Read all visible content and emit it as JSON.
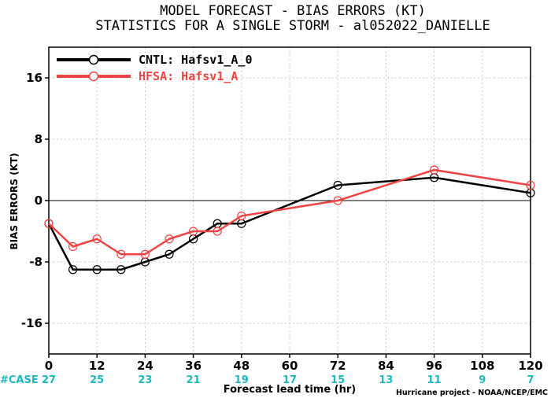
{
  "chart_data": {
    "type": "line",
    "title": "MODEL FORECAST - BIAS ERRORS (KT)",
    "subtitle": "STATISTICS FOR A SINGLE STORM - al052022_DANIELLE",
    "xlabel": "Forecast lead time (hr)",
    "ylabel": "BIAS ERRORS (KT)",
    "xlim": [
      0,
      120
    ],
    "ylim": [
      -20,
      20
    ],
    "x_ticks": [
      "0",
      "12",
      "24",
      "36",
      "48",
      "60",
      "72",
      "84",
      "96",
      "108",
      "120"
    ],
    "y_ticks": [
      "16",
      "8",
      "0",
      "-8",
      "-16"
    ],
    "grid": true,
    "legend_position": "top-left",
    "case_label": "#CASE",
    "case_counts": [
      "27",
      "25",
      "23",
      "21",
      "19",
      "17",
      "15",
      "13",
      "11",
      "9",
      "7"
    ],
    "credit": "Hurricane project - NOAA/NCEP/EMC",
    "series": [
      {
        "name": "CNTL: Hafsv1_A_0",
        "color": "#000000",
        "x": [
          0,
          6,
          12,
          18,
          24,
          30,
          36,
          42,
          48,
          72,
          96,
          120
        ],
        "values": [
          -3,
          -9,
          -9,
          -9,
          -8,
          -7,
          -5,
          -3,
          -3,
          2,
          3,
          1
        ]
      },
      {
        "name": "HFSA: Hafsv1_A",
        "color": "#ee4444",
        "x": [
          0,
          6,
          12,
          18,
          24,
          30,
          36,
          42,
          48,
          72,
          96,
          120
        ],
        "values": [
          -3,
          -6,
          -5,
          -7,
          -7,
          -5,
          -4,
          -4,
          -2,
          0,
          4,
          2
        ]
      }
    ]
  }
}
